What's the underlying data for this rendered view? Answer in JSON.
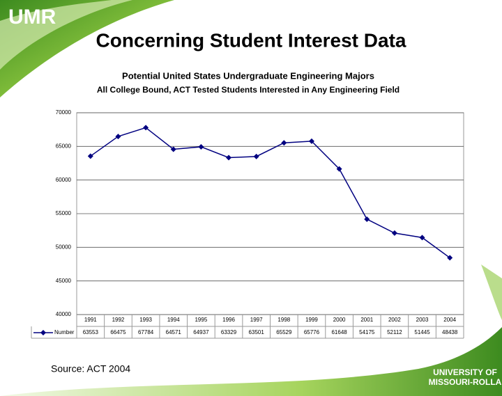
{
  "header": {
    "logo": "UMR",
    "title": "Concerning Student Interest Data"
  },
  "chart_data": {
    "type": "line",
    "title": "Potential United States Undergraduate Engineering Majors",
    "subtitle": "All College Bound, ACT Tested Students Interested in Any Engineering Field",
    "categories": [
      "1991",
      "1992",
      "1993",
      "1994",
      "1995",
      "1996",
      "1997",
      "1998",
      "1999",
      "2000",
      "2001",
      "2002",
      "2003",
      "2004"
    ],
    "series": [
      {
        "name": "Number",
        "color": "#000080",
        "values": [
          63553,
          66475,
          67784,
          64571,
          64937,
          63329,
          63501,
          65529,
          65776,
          61648,
          54175,
          52112,
          51445,
          48438
        ]
      }
    ],
    "ylim": [
      40000,
      70000
    ],
    "yticks": [
      40000,
      45000,
      50000,
      55000,
      60000,
      65000,
      70000
    ],
    "grid": true
  },
  "source": "Source: ACT 2004",
  "footer_logo": [
    "UNIVERSITY OF",
    "MISSOURI-ROLLA"
  ]
}
